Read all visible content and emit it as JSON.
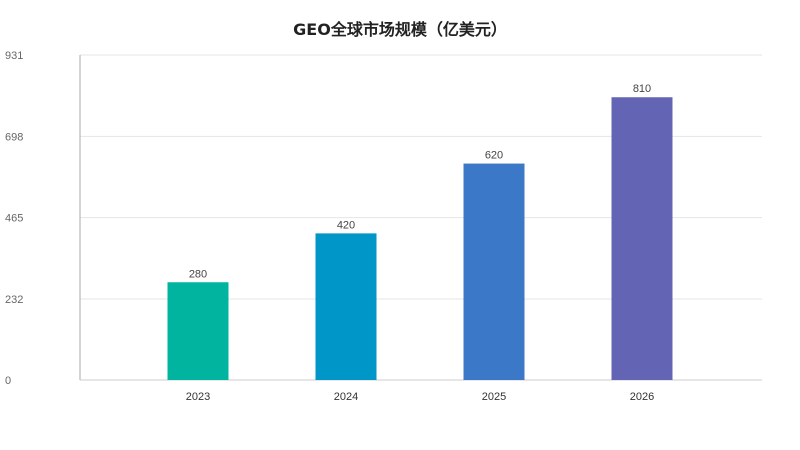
{
  "chart_data": {
    "type": "bar",
    "title": "GEO全球市场规模（亿美元）",
    "xlabel": "",
    "ylabel": "",
    "categories": [
      "2023",
      "2024",
      "2025",
      "2026"
    ],
    "values": [
      280,
      420,
      620,
      810
    ],
    "data_labels": [
      "280",
      "420",
      "620",
      "810"
    ],
    "colors": [
      "#00b4a0",
      "#0096c8",
      "#3c78c8",
      "#6464b4"
    ],
    "y_ticks": [
      0,
      232,
      465,
      698,
      931
    ],
    "ylim": [
      0,
      931
    ],
    "grid": true,
    "legend": "none"
  }
}
